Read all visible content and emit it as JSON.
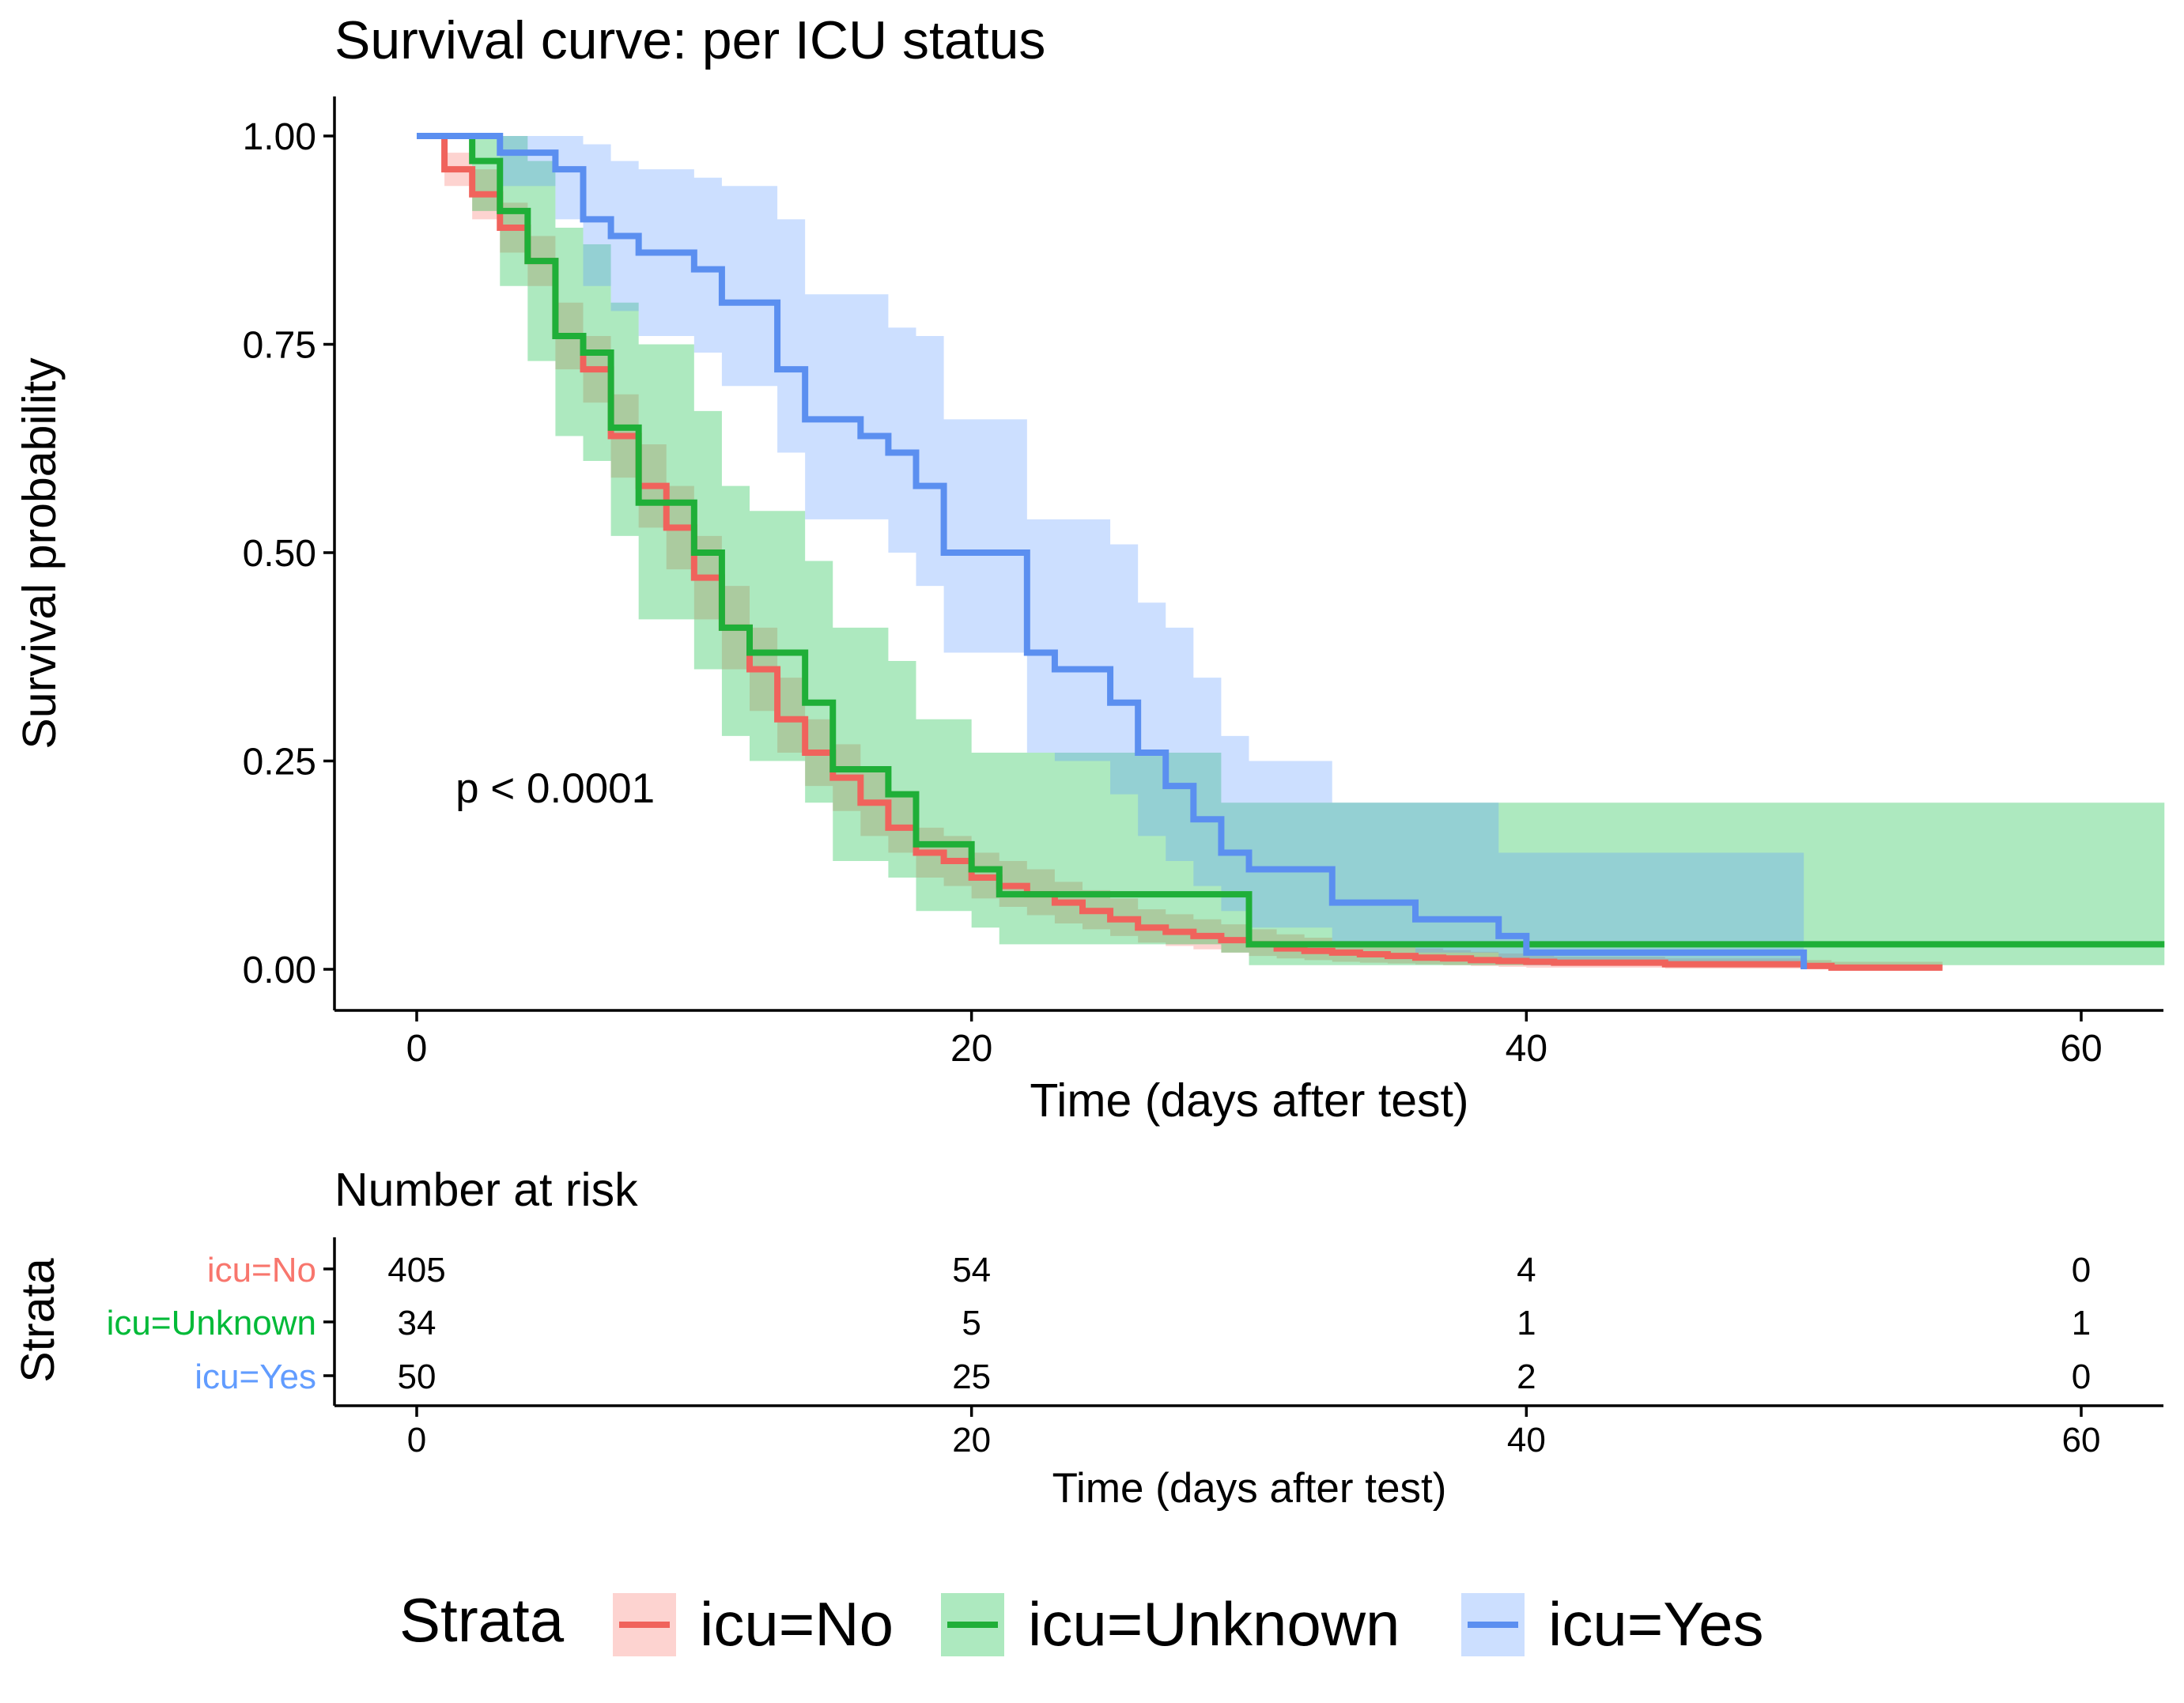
{
  "chart_data": {
    "type": "line",
    "subtype": "kaplan-meier",
    "title": "Survival curve: per ICU status",
    "xlabel": "Time (days after test)",
    "ylabel": "Survival probability",
    "xlim": [
      -3,
      63
    ],
    "ylim": [
      -0.05,
      1.05
    ],
    "xticks": [
      "0",
      "20",
      "40",
      "60"
    ],
    "xtick_values": [
      0,
      20,
      40,
      60
    ],
    "yticks": [
      "0.00",
      "0.25",
      "0.50",
      "0.75",
      "1.00"
    ],
    "ytick_values": [
      0,
      0.25,
      0.5,
      0.75,
      1.0
    ],
    "grid": false,
    "annotation": "p < 0.0001",
    "annotation_pos": [
      1.4,
      0.2
    ],
    "series": [
      {
        "name": "icu=No",
        "color": "#F8766D",
        "line_color": "#F0635C",
        "t": [
          0,
          1,
          2,
          3,
          4,
          5,
          6,
          7,
          8,
          9,
          10,
          11,
          12,
          13,
          14,
          15,
          16,
          17,
          18,
          19,
          20,
          21,
          22,
          23,
          24,
          25,
          26,
          27,
          28,
          29,
          30,
          31,
          32,
          33,
          34,
          35,
          36,
          37,
          38,
          39,
          40,
          41,
          45,
          50,
          51,
          55
        ],
        "s": [
          1.0,
          0.96,
          0.93,
          0.89,
          0.85,
          0.76,
          0.72,
          0.64,
          0.58,
          0.53,
          0.47,
          0.41,
          0.36,
          0.3,
          0.26,
          0.23,
          0.2,
          0.17,
          0.14,
          0.13,
          0.11,
          0.1,
          0.09,
          0.08,
          0.07,
          0.06,
          0.05,
          0.045,
          0.04,
          0.035,
          0.03,
          0.025,
          0.022,
          0.02,
          0.018,
          0.016,
          0.014,
          0.013,
          0.011,
          0.01,
          0.009,
          0.008,
          0.006,
          0.004,
          0.002,
          0.002
        ],
        "lower": [
          1.0,
          0.94,
          0.9,
          0.86,
          0.82,
          0.72,
          0.68,
          0.59,
          0.53,
          0.48,
          0.42,
          0.36,
          0.31,
          0.26,
          0.22,
          0.19,
          0.16,
          0.14,
          0.11,
          0.1,
          0.085,
          0.075,
          0.065,
          0.055,
          0.048,
          0.04,
          0.032,
          0.028,
          0.024,
          0.02,
          0.016,
          0.013,
          0.011,
          0.009,
          0.008,
          0.007,
          0.006,
          0.005,
          0.004,
          0.003,
          0.002,
          0.002,
          0.001,
          0.0,
          0.0,
          0.0
        ],
        "upper": [
          1.0,
          0.98,
          0.96,
          0.92,
          0.88,
          0.8,
          0.76,
          0.69,
          0.63,
          0.58,
          0.52,
          0.46,
          0.41,
          0.35,
          0.3,
          0.27,
          0.24,
          0.21,
          0.17,
          0.16,
          0.14,
          0.13,
          0.12,
          0.105,
          0.095,
          0.085,
          0.072,
          0.066,
          0.06,
          0.054,
          0.048,
          0.042,
          0.038,
          0.034,
          0.031,
          0.028,
          0.025,
          0.023,
          0.021,
          0.019,
          0.017,
          0.015,
          0.013,
          0.011,
          0.009,
          0.009
        ]
      },
      {
        "name": "icu=Unknown",
        "color": "#00BA38",
        "line_color": "#1FAF38",
        "t": [
          0,
          2,
          3,
          4,
          5,
          6,
          7,
          8,
          10,
          11,
          12,
          14,
          15,
          17,
          18,
          20,
          21,
          23,
          29,
          30,
          63
        ],
        "s": [
          1.0,
          0.97,
          0.91,
          0.85,
          0.76,
          0.74,
          0.65,
          0.56,
          0.5,
          0.41,
          0.38,
          0.32,
          0.24,
          0.21,
          0.15,
          0.12,
          0.09,
          0.09,
          0.09,
          0.03,
          0.03
        ],
        "lower": [
          1.0,
          0.91,
          0.82,
          0.73,
          0.64,
          0.61,
          0.52,
          0.42,
          0.36,
          0.28,
          0.25,
          0.2,
          0.13,
          0.11,
          0.07,
          0.05,
          0.03,
          0.03,
          0.02,
          0.005,
          0.005
        ],
        "upper": [
          1.0,
          1.0,
          1.0,
          0.97,
          0.89,
          0.87,
          0.8,
          0.75,
          0.67,
          0.58,
          0.55,
          0.49,
          0.41,
          0.37,
          0.3,
          0.26,
          0.26,
          0.26,
          0.2,
          0.2,
          0.2
        ]
      },
      {
        "name": "icu=Yes",
        "color": "#619CFF",
        "line_color": "#5B8FF0",
        "t": [
          0,
          3,
          5,
          6,
          7,
          8,
          10,
          11,
          13,
          14,
          16,
          17,
          18,
          19,
          22,
          23,
          25,
          26,
          27,
          28,
          29,
          30,
          33,
          36,
          39,
          40,
          50
        ],
        "s": [
          1.0,
          0.98,
          0.96,
          0.9,
          0.88,
          0.86,
          0.84,
          0.8,
          0.72,
          0.66,
          0.64,
          0.62,
          0.58,
          0.5,
          0.38,
          0.36,
          0.32,
          0.26,
          0.22,
          0.18,
          0.14,
          0.12,
          0.08,
          0.06,
          0.04,
          0.02,
          0.0
        ],
        "lower": [
          1.0,
          0.94,
          0.9,
          0.82,
          0.79,
          0.76,
          0.74,
          0.7,
          0.62,
          0.54,
          0.54,
          0.5,
          0.46,
          0.38,
          0.26,
          0.25,
          0.21,
          0.16,
          0.13,
          0.1,
          0.07,
          0.05,
          0.03,
          0.02,
          0.01,
          0.005,
          0.0
        ],
        "upper": [
          1.0,
          1.0,
          1.0,
          0.99,
          0.97,
          0.96,
          0.95,
          0.94,
          0.9,
          0.81,
          0.81,
          0.77,
          0.76,
          0.66,
          0.54,
          0.54,
          0.51,
          0.44,
          0.41,
          0.35,
          0.28,
          0.25,
          0.2,
          0.2,
          0.14,
          0.14,
          0.14
        ]
      }
    ]
  },
  "risk_table": {
    "title": "Number at risk",
    "ylabel": "Strata",
    "xlabel": "Time (days after test)",
    "xticks": [
      "0",
      "20",
      "40",
      "60"
    ],
    "times": [
      0,
      20,
      40,
      60
    ],
    "rows": [
      {
        "label": "icu=No",
        "color": "#F8766D",
        "values": [
          "405",
          "54",
          "4",
          "0"
        ]
      },
      {
        "label": "icu=Unknown",
        "color": "#00BA38",
        "values": [
          "34",
          "5",
          "1",
          "1"
        ]
      },
      {
        "label": "icu=Yes",
        "color": "#619CFF",
        "values": [
          "50",
          "25",
          "2",
          "0"
        ]
      }
    ]
  },
  "legend": {
    "title": "Strata",
    "position": "bottom",
    "items": [
      {
        "label": "icu=No",
        "color": "#F8766D",
        "line_color": "#F0635C"
      },
      {
        "label": "icu=Unknown",
        "color": "#00BA38",
        "line_color": "#1FAF38"
      },
      {
        "label": "icu=Yes",
        "color": "#619CFF",
        "line_color": "#5B8FF0"
      }
    ]
  }
}
